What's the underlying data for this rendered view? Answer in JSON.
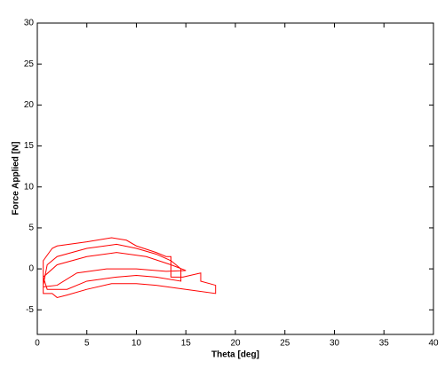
{
  "chart_data": {
    "type": "line",
    "x_label": "Theta [deg]",
    "y_label": "Force Applied [N]",
    "xlim": [
      0,
      40
    ],
    "xticks": [
      0,
      5,
      10,
      15,
      20,
      25,
      30,
      35,
      40
    ],
    "ylim": [
      -8,
      30
    ],
    "yticks": [
      -5,
      0,
      5,
      10,
      15,
      20,
      25,
      30
    ],
    "series": [
      {
        "color": "#ff0000",
        "x": [
          0.6,
          0.6,
          1.5,
          2,
          5,
          7.5,
          9,
          10,
          12,
          13,
          13.5,
          13.5,
          14.7,
          16.5,
          16.5,
          18,
          18,
          15,
          12,
          10,
          7.5,
          5,
          3,
          2,
          1.5,
          0.6,
          0.6,
          1,
          2,
          5,
          8,
          10,
          12,
          13.5,
          14.5,
          14.5,
          12,
          10,
          8,
          5,
          3,
          1,
          0.6,
          2,
          5,
          8,
          11,
          13.5,
          15,
          13,
          10,
          7,
          4,
          2,
          0.6
        ],
        "values": [
          -3,
          1,
          2.5,
          2.8,
          3.3,
          3.8,
          3.5,
          2.8,
          2,
          1.5,
          1.5,
          -1,
          -1,
          -0.5,
          -1.5,
          -2,
          -3,
          -2.5,
          -2,
          -1.8,
          -1.8,
          -2.5,
          -3.2,
          -3.5,
          -3,
          -3,
          -2,
          0.5,
          1.5,
          2.5,
          3,
          2.5,
          1.8,
          1,
          0,
          -1.5,
          -1,
          -0.8,
          -1,
          -1.5,
          -2.5,
          -2.5,
          -1,
          0.5,
          1.5,
          2,
          1.5,
          0.5,
          -0.2,
          -0.3,
          0,
          0,
          -0.5,
          -2,
          -2.2
        ]
      }
    ]
  }
}
